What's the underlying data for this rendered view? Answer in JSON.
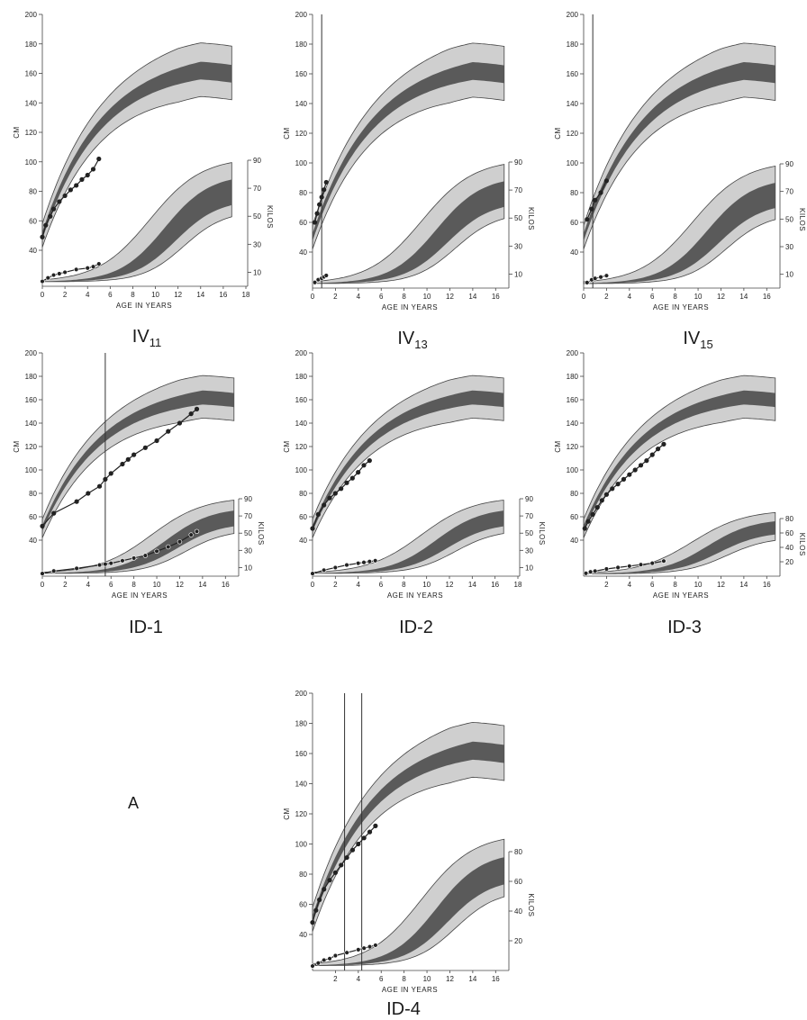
{
  "figure": {
    "letter": "A",
    "height_band_colors": {
      "outer": "#cfcfcf",
      "inner": "#5a5a5a",
      "edge": "#444444",
      "patient": "#222222",
      "marker": "#ffffff"
    },
    "x_label": "AGE IN YEARS",
    "height_unit": "CM",
    "weight_unit": "KILOS",
    "height_ticks": [
      "40",
      "60",
      "80",
      "100",
      "120",
      "140",
      "160",
      "180",
      "200"
    ],
    "weight_ticks_90": [
      "10",
      "30",
      "50",
      "70",
      "90"
    ],
    "weight_ticks_80": [
      "20",
      "40",
      "60",
      "80"
    ]
  },
  "chart_data": [
    {
      "id": "iv11",
      "type": "line",
      "label_main": "IV",
      "label_sub": "11",
      "x_ticks": [
        "0",
        "2",
        "4",
        "6",
        "8",
        "10",
        "12",
        "14",
        "16",
        "18"
      ],
      "xlim": [
        0,
        18
      ],
      "height_ylim": [
        40,
        200
      ],
      "weight_scale": "90",
      "height_series": {
        "name": "",
        "x": [
          0,
          0.3,
          0.7,
          1,
          1.5,
          2,
          2.5,
          3,
          3.5,
          4,
          4.5,
          5
        ],
        "y": [
          49,
          57,
          63,
          68,
          73,
          77,
          81,
          84,
          88,
          91,
          95,
          102
        ]
      },
      "weight_series": {
        "name": "",
        "x": [
          0,
          0.5,
          1,
          1.5,
          2,
          3,
          4,
          4.5,
          5
        ],
        "y": [
          3.5,
          6,
          8,
          9,
          10,
          12,
          13,
          14,
          16
        ]
      },
      "vlines": []
    },
    {
      "id": "iv13",
      "type": "line",
      "label_main": "IV",
      "label_sub": "13",
      "x_ticks": [
        "0",
        "2",
        "4",
        "6",
        "8",
        "10",
        "12",
        "14",
        "16"
      ],
      "xlim": [
        0,
        17
      ],
      "height_ylim": [
        40,
        200
      ],
      "weight_scale": "90",
      "height_series": {
        "name": "",
        "x": [
          0.2,
          0.4,
          0.6,
          0.8,
          1,
          1.2
        ],
        "y": [
          60,
          66,
          72,
          77,
          82,
          87
        ]
      },
      "weight_series": {
        "name": "",
        "x": [
          0.2,
          0.5,
          0.8,
          1,
          1.2
        ],
        "y": [
          4,
          6,
          7,
          8,
          9
        ]
      },
      "vlines": [
        0.8
      ]
    },
    {
      "id": "iv15",
      "type": "line",
      "label_main": "IV",
      "label_sub": "15",
      "x_ticks": [
        "0",
        "2",
        "4",
        "6",
        "8",
        "10",
        "12",
        "14",
        "16"
      ],
      "xlim": [
        0,
        17
      ],
      "height_ylim": [
        40,
        200
      ],
      "weight_scale": "90",
      "height_series": {
        "name": "",
        "x": [
          0.3,
          0.7,
          1,
          1.5,
          2
        ],
        "y": [
          62,
          69,
          75,
          80,
          88
        ]
      },
      "weight_series": {
        "name": "",
        "x": [
          0.3,
          0.7,
          1,
          1.5,
          2
        ],
        "y": [
          4,
          6,
          7,
          8,
          9
        ]
      },
      "vlines": [
        0.8
      ]
    },
    {
      "id": "id1",
      "type": "line",
      "label_main": "ID-1",
      "label_sub": "",
      "x_ticks": [
        "0",
        "2",
        "4",
        "6",
        "8",
        "10",
        "12",
        "14",
        "16"
      ],
      "xlim": [
        0,
        17
      ],
      "height_ylim": [
        40,
        200
      ],
      "weight_scale": "90",
      "height_series": {
        "name": "",
        "x": [
          0,
          1,
          3,
          4,
          5,
          5.5,
          6,
          7,
          7.5,
          8,
          9,
          10,
          11,
          12,
          13,
          13.5
        ],
        "y": [
          52,
          63,
          73,
          80,
          86,
          92,
          97,
          105,
          109,
          113,
          119,
          125,
          133,
          140,
          148,
          152
        ]
      },
      "weight_series": {
        "name": "",
        "x": [
          0,
          1,
          3,
          5,
          5.5,
          6,
          7,
          8,
          9,
          10,
          11,
          12,
          13,
          13.5
        ],
        "y": [
          3,
          6,
          9,
          13,
          14,
          15,
          18,
          21,
          24,
          29,
          34,
          40,
          48,
          52
        ]
      },
      "vlines": [
        5.5
      ]
    },
    {
      "id": "id2",
      "type": "line",
      "label_main": "ID-2",
      "label_sub": "",
      "x_ticks": [
        "0",
        "2",
        "4",
        "6",
        "8",
        "10",
        "12",
        "14",
        "16",
        "18"
      ],
      "xlim": [
        0,
        18
      ],
      "height_ylim": [
        40,
        200
      ],
      "weight_scale": "90",
      "height_series": {
        "name": "",
        "x": [
          0,
          0.5,
          1,
          1.5,
          2,
          2.5,
          3,
          3.5,
          4,
          4.5,
          5
        ],
        "y": [
          50,
          62,
          70,
          76,
          80,
          84,
          89,
          93,
          98,
          104,
          108
        ]
      },
      "weight_series": {
        "name": "",
        "x": [
          0,
          1,
          2,
          3,
          4,
          4.5,
          5,
          5.5
        ],
        "y": [
          3,
          7,
          10,
          13,
          15,
          16,
          17,
          18
        ]
      },
      "vlines": []
    },
    {
      "id": "id3",
      "type": "line",
      "label_main": "ID-3",
      "label_sub": "",
      "x_ticks": [
        "2",
        "4",
        "6",
        "8",
        "10",
        "12",
        "14",
        "16"
      ],
      "xlim": [
        0,
        17
      ],
      "height_ylim": [
        40,
        200
      ],
      "weight_scale": "80",
      "height_series": {
        "name": "",
        "x": [
          0.1,
          0.4,
          0.8,
          1.2,
          1.6,
          2,
          2.5,
          3,
          3.5,
          4,
          4.5,
          5,
          5.5,
          6,
          6.5,
          7
        ],
        "y": [
          50,
          56,
          62,
          68,
          74,
          79,
          84,
          88,
          92,
          96,
          100,
          104,
          108,
          113,
          118,
          122
        ]
      },
      "weight_series": {
        "name": "",
        "x": [
          0.2,
          0.6,
          1,
          2,
          3,
          4,
          5,
          6,
          7
        ],
        "y": [
          4,
          6,
          7,
          10,
          12,
          14,
          16,
          18,
          21
        ]
      },
      "vlines": []
    },
    {
      "id": "id4",
      "type": "line",
      "label_main": "ID-4",
      "label_sub": "",
      "x_ticks": [
        "2",
        "4",
        "6",
        "8",
        "10",
        "12",
        "14",
        "16"
      ],
      "xlim": [
        0,
        17
      ],
      "height_ylim": [
        40,
        200
      ],
      "weight_scale": "80",
      "height_series": {
        "name": "",
        "x": [
          0,
          0.3,
          0.6,
          1,
          1.5,
          2,
          2.5,
          3,
          3.5,
          4,
          4.5,
          5,
          5.5
        ],
        "y": [
          48,
          56,
          63,
          70,
          76,
          81,
          86,
          91,
          96,
          100,
          104,
          108,
          112
        ]
      },
      "weight_series": {
        "name": "",
        "x": [
          0,
          0.5,
          1,
          1.5,
          2,
          3,
          4,
          4.5,
          5,
          5.5
        ],
        "y": [
          3,
          5,
          7,
          8,
          10,
          12,
          14,
          15,
          16,
          17
        ]
      },
      "vlines": [
        2.8,
        4.3
      ]
    }
  ]
}
